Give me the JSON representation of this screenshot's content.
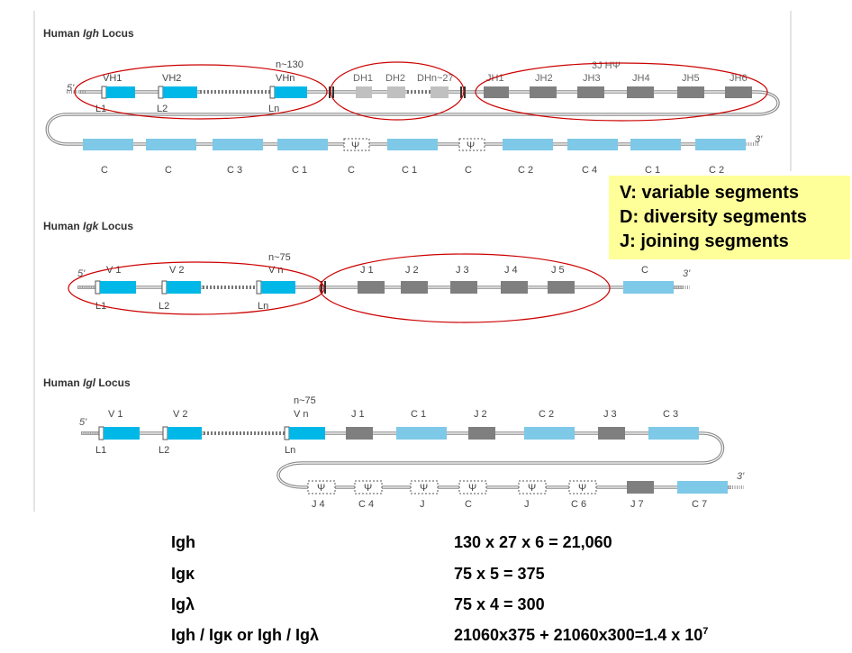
{
  "loci": {
    "igh": {
      "title_prefix": "Human ",
      "title_italic": "Igh",
      "title_suffix": " Locus",
      "end5": "5'",
      "end3": "3'",
      "v_count": "n~130",
      "v_labels": [
        "VH1",
        "VH2",
        "VHn"
      ],
      "l_labels": [
        "L1",
        "L2",
        "Ln"
      ],
      "d_labels": [
        "DH1",
        "DH2",
        "DHn~27"
      ],
      "j_pseudo": "3J HΨ",
      "j_labels": [
        "JH1",
        "JH2",
        "JH3",
        "JH4",
        "JH5",
        "JH6"
      ],
      "c_labels": [
        "C",
        "C",
        "C 3",
        "C 1",
        "C",
        "C 1",
        "C",
        "C 2",
        "C 4",
        "C 1",
        "C 2"
      ],
      "psi_symbol": "Ψ"
    },
    "igk": {
      "title_prefix": "Human ",
      "title_italic": "Igk",
      "title_suffix": " Locus",
      "end5": "5'",
      "end3": "3'",
      "v_count": "n~75",
      "v_labels": [
        "V 1",
        "V 2",
        "V n"
      ],
      "l_labels": [
        "L1",
        "L2",
        "Ln"
      ],
      "j_labels": [
        "J 1",
        "J 2",
        "J 3",
        "J 4",
        "J 5"
      ],
      "c_label": "C"
    },
    "igl": {
      "title_prefix": "Human ",
      "title_italic": "Igl",
      "title_suffix": " Locus",
      "end5": "5'",
      "end3": "3'",
      "v_count": "n~75",
      "v_labels": [
        "V 1",
        "V 2",
        "V n"
      ],
      "l_labels": [
        "L1",
        "L2",
        "Ln"
      ],
      "top_labels": [
        "J 1",
        "C 1",
        "J 2",
        "C 2",
        "J 3",
        "C 3"
      ],
      "bottom_labels": [
        "J 4",
        "C 4",
        "J",
        "C",
        "J",
        "C 6",
        "J 7",
        "C 7"
      ],
      "psi_symbol": "Ψ"
    }
  },
  "legend": {
    "v": "V: variable segments",
    "d": "D: diversity segments",
    "j": "J: joining segments"
  },
  "calculations": [
    {
      "label": "Igh",
      "value": "130 x 27 x 6 = 21,060"
    },
    {
      "label": "Igκ",
      "value": "75 x 5 = 375"
    },
    {
      "label": "Igλ",
      "value": "75 x 4 = 300"
    },
    {
      "label": "Igh / Igκ or Igh / Igλ",
      "value": "21060x375 + 21060x300=1.4 x 10",
      "value_exp": "7"
    }
  ],
  "colors": {
    "v_segment": "#00b8e8",
    "c_segment": "#7ec8e8",
    "j_segment": "#7f7f7f",
    "d_segment": "#c0c0c0",
    "ellipse": "#cc0000",
    "legend_bg": "#ffff99"
  }
}
